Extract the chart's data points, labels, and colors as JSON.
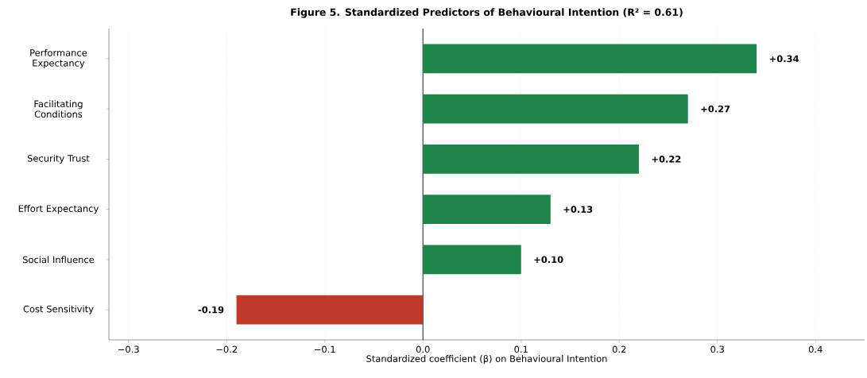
{
  "chart_data": {
    "type": "bar",
    "orientation": "horizontal",
    "title": "Figure 5. Standardized Predictors of Behavioural Intention (R² = 0.61)",
    "xlabel": "Standardized coefficient (β) on Behavioural Intention",
    "categories": [
      "Performance Expectancy",
      "Facilitating Conditions",
      "Security Trust",
      "Effort Expectancy",
      "Social Influence",
      "Cost Sensitivity"
    ],
    "values": [
      0.34,
      0.27,
      0.22,
      0.13,
      0.1,
      -0.19
    ],
    "value_labels": [
      "+0.34",
      "+0.27",
      "+0.22",
      "+0.13",
      "+0.10",
      "-0.19"
    ],
    "colors": [
      "#1e8449",
      "#1e8449",
      "#1e8449",
      "#1e8449",
      "#1e8449",
      "#c0392b"
    ],
    "xlim": [
      -0.32,
      0.45
    ],
    "xticks": [
      {
        "value": -0.3,
        "label": "−0.3"
      },
      {
        "value": -0.2,
        "label": "−0.2"
      },
      {
        "value": -0.1,
        "label": "−0.1"
      },
      {
        "value": 0.0,
        "label": "0.0"
      },
      {
        "value": 0.1,
        "label": "0.1"
      },
      {
        "value": 0.2,
        "label": "0.2"
      },
      {
        "value": 0.3,
        "label": "0.3"
      },
      {
        "value": 0.4,
        "label": "0.4"
      }
    ],
    "grid": "x",
    "ref_lines": [
      {
        "axis": "x",
        "value": 0,
        "color": "#34495e"
      }
    ]
  }
}
